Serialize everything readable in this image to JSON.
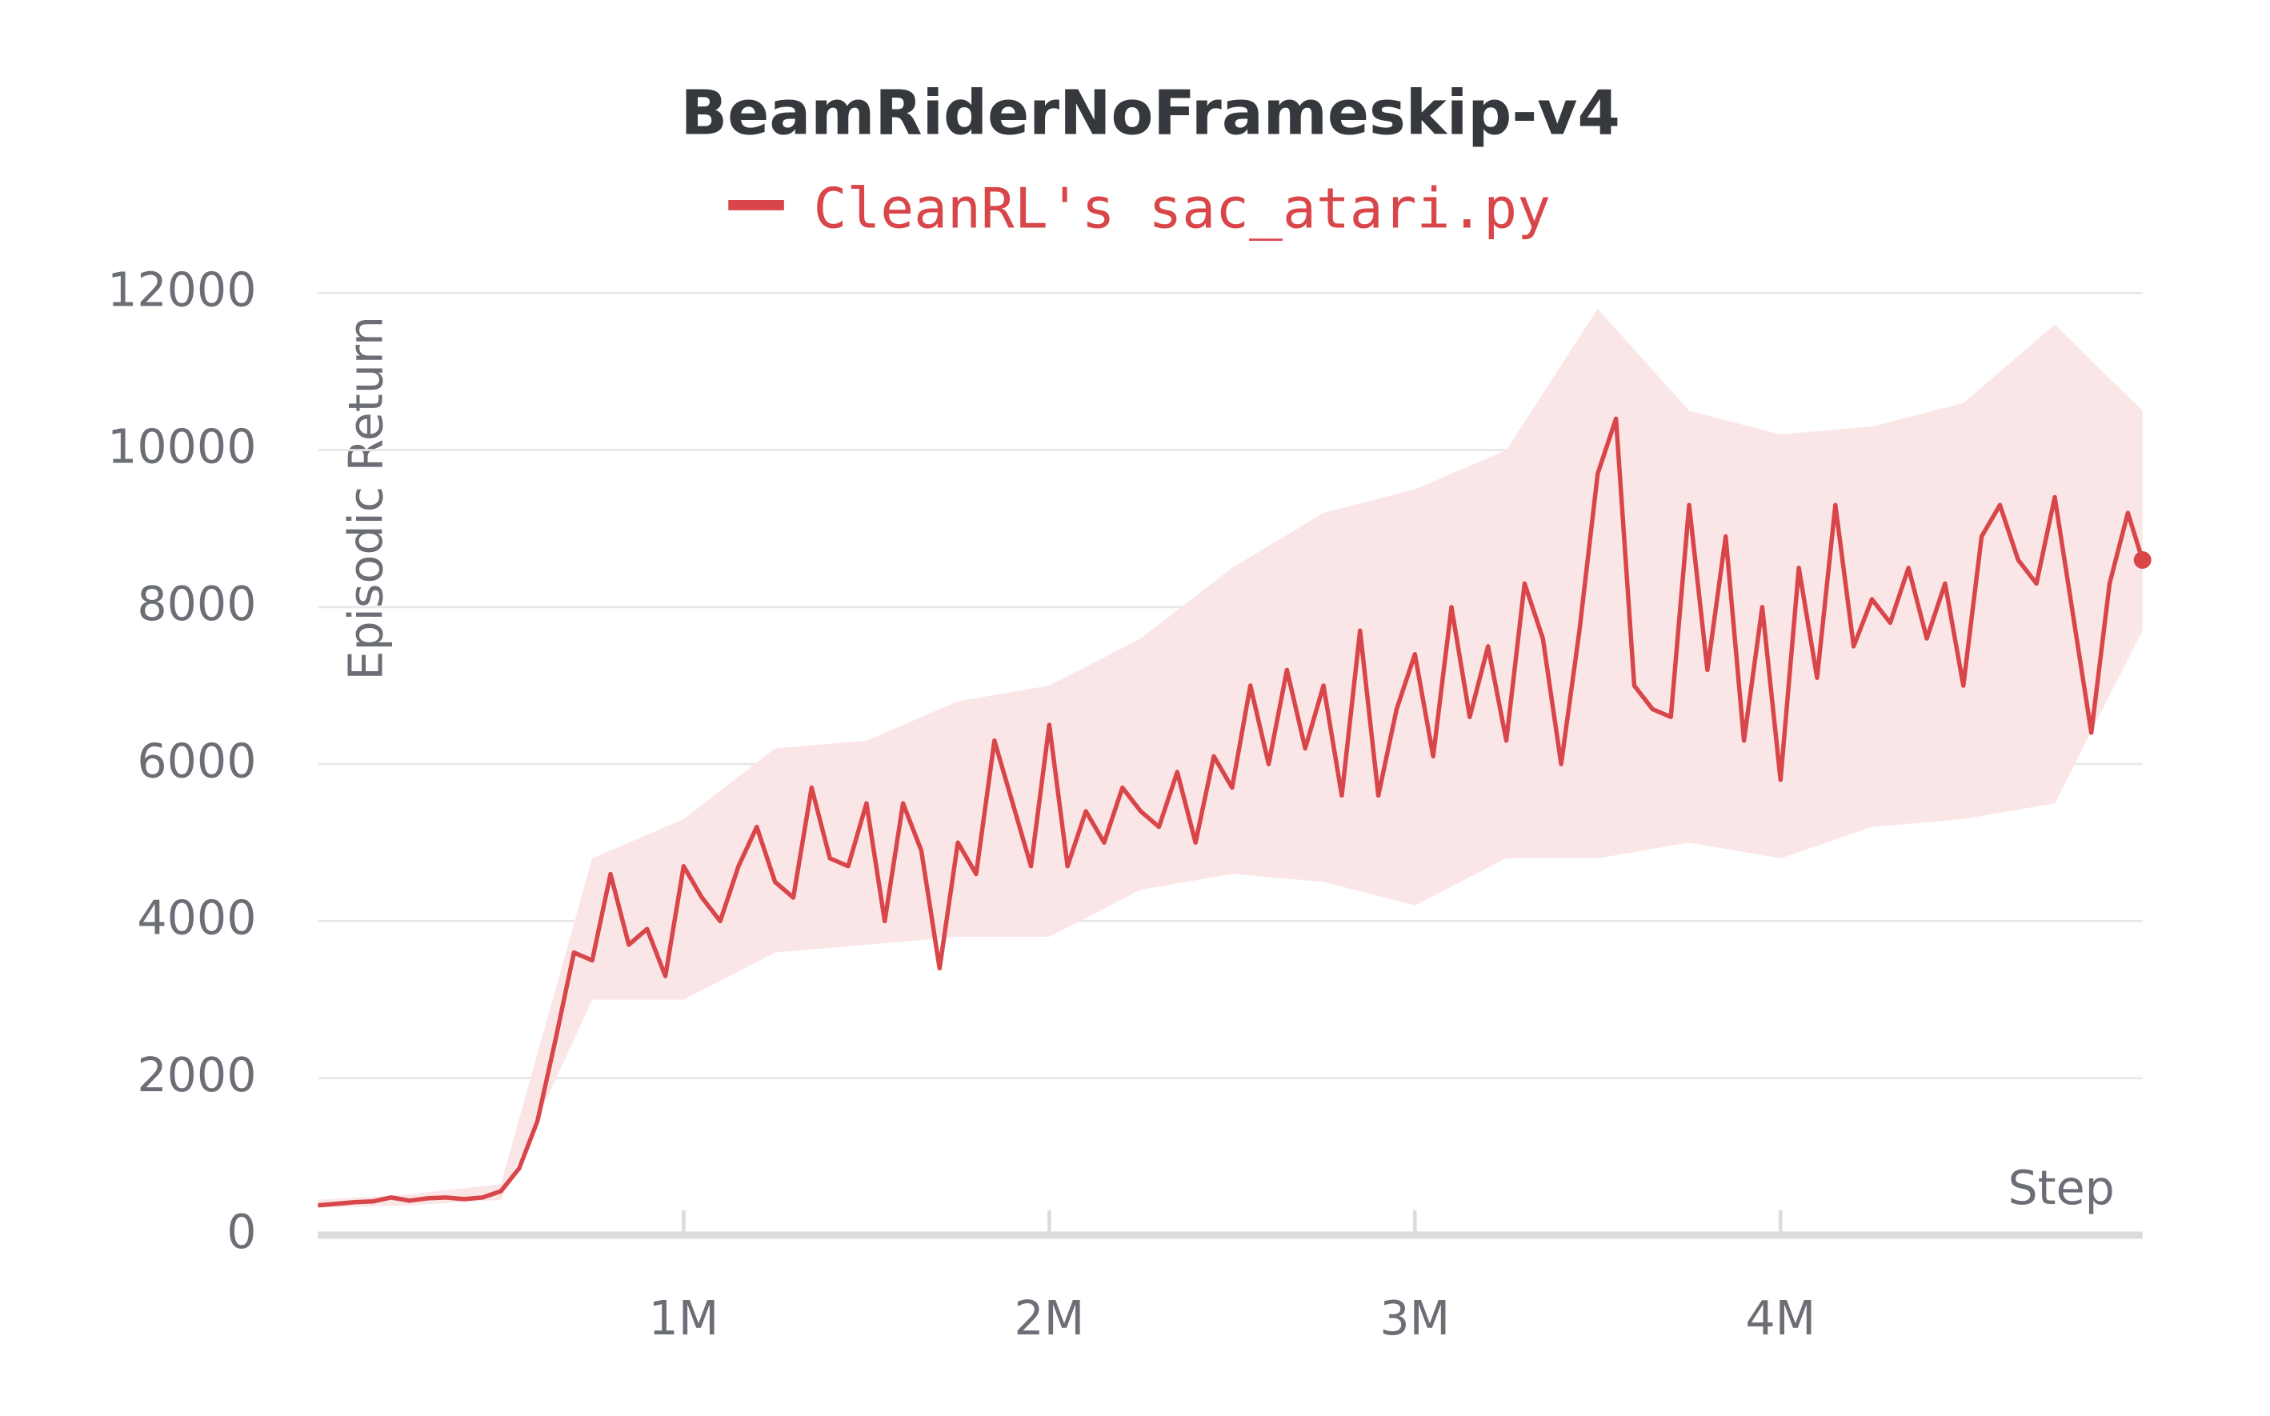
{
  "chart_data": {
    "type": "line",
    "title": "BeamRiderNoFrameskip-v4",
    "y_label": "Episodic Return",
    "x_label": "Step",
    "x": [
      0,
      50000,
      100000,
      150000,
      200000,
      250000,
      300000,
      350000,
      400000,
      450000,
      500000,
      550000,
      600000,
      650000,
      700000,
      750000,
      800000,
      850000,
      900000,
      950000,
      1000000,
      1050000,
      1100000,
      1150000,
      1200000,
      1250000,
      1300000,
      1350000,
      1400000,
      1450000,
      1500000,
      1550000,
      1600000,
      1650000,
      1700000,
      1750000,
      1800000,
      1850000,
      1900000,
      1950000,
      2000000,
      2050000,
      2100000,
      2150000,
      2200000,
      2250000,
      2300000,
      2350000,
      2400000,
      2450000,
      2500000,
      2550000,
      2600000,
      2650000,
      2700000,
      2750000,
      2800000,
      2850000,
      2900000,
      2950000,
      3000000,
      3050000,
      3100000,
      3150000,
      3200000,
      3250000,
      3300000,
      3350000,
      3400000,
      3450000,
      3500000,
      3550000,
      3600000,
      3650000,
      3700000,
      3750000,
      3800000,
      3850000,
      3900000,
      3950000,
      4000000,
      4050000,
      4100000,
      4150000,
      4200000,
      4250000,
      4300000,
      4350000,
      4400000,
      4450000,
      4500000,
      4550000,
      4600000,
      4650000,
      4700000,
      4750000,
      4800000,
      4850000,
      4900000,
      4950000,
      4990000
    ],
    "series": [
      {
        "name": "CleanRL's sac_atari.py",
        "color": "#d9464a",
        "values": [
          380,
          400,
          420,
          430,
          480,
          440,
          470,
          480,
          460,
          480,
          560,
          850,
          1450,
          2500,
          3600,
          3500,
          4600,
          3700,
          3900,
          3300,
          4700,
          4300,
          4000,
          4700,
          5200,
          4500,
          4300,
          5700,
          4800,
          4700,
          5500,
          4000,
          5500,
          4900,
          3400,
          5000,
          4600,
          6300,
          5500,
          4700,
          6500,
          4700,
          5400,
          5000,
          5700,
          5400,
          5200,
          5900,
          5000,
          6100,
          5700,
          7000,
          6000,
          7200,
          6200,
          7000,
          5600,
          7700,
          5600,
          6700,
          7400,
          6100,
          8000,
          6600,
          7500,
          6300,
          8300,
          7600,
          6000,
          7700,
          9700,
          10400,
          7000,
          6700,
          6600,
          9300,
          7200,
          8900,
          6300,
          8000,
          5800,
          8500,
          7100,
          9300,
          7500,
          8100,
          7800,
          8500,
          7600,
          8300,
          7000,
          8900,
          9300,
          8600,
          8300,
          9400,
          7900,
          6400,
          8300,
          9200,
          8600
        ]
      }
    ],
    "band": {
      "color": "#fbe6e7",
      "x": [
        0,
        250000,
        500000,
        750000,
        1000000,
        1250000,
        1500000,
        1750000,
        2000000,
        2250000,
        2500000,
        2750000,
        3000000,
        3250000,
        3500000,
        3750000,
        4000000,
        4250000,
        4500000,
        4750000,
        4990000
      ],
      "lower": [
        350,
        380,
        450,
        3000,
        3000,
        3600,
        3700,
        3800,
        3800,
        4400,
        4600,
        4500,
        4200,
        4800,
        4800,
        5000,
        4800,
        5200,
        5300,
        5500,
        7700
      ],
      "upper": [
        450,
        520,
        650,
        4800,
        5300,
        6200,
        6300,
        6800,
        7000,
        7600,
        8500,
        9200,
        9500,
        10000,
        11800,
        10500,
        10200,
        10300,
        10600,
        11600,
        10500
      ]
    },
    "xlim": [
      0,
      4990000
    ],
    "ylim": [
      0,
      12000
    ],
    "xticks": [
      {
        "value": 1000000,
        "label": "1M"
      },
      {
        "value": 2000000,
        "label": "2M"
      },
      {
        "value": 3000000,
        "label": "3M"
      },
      {
        "value": 4000000,
        "label": "4M"
      }
    ],
    "yticks": [
      0,
      2000,
      4000,
      6000,
      8000,
      10000,
      12000
    ],
    "grid": true
  }
}
